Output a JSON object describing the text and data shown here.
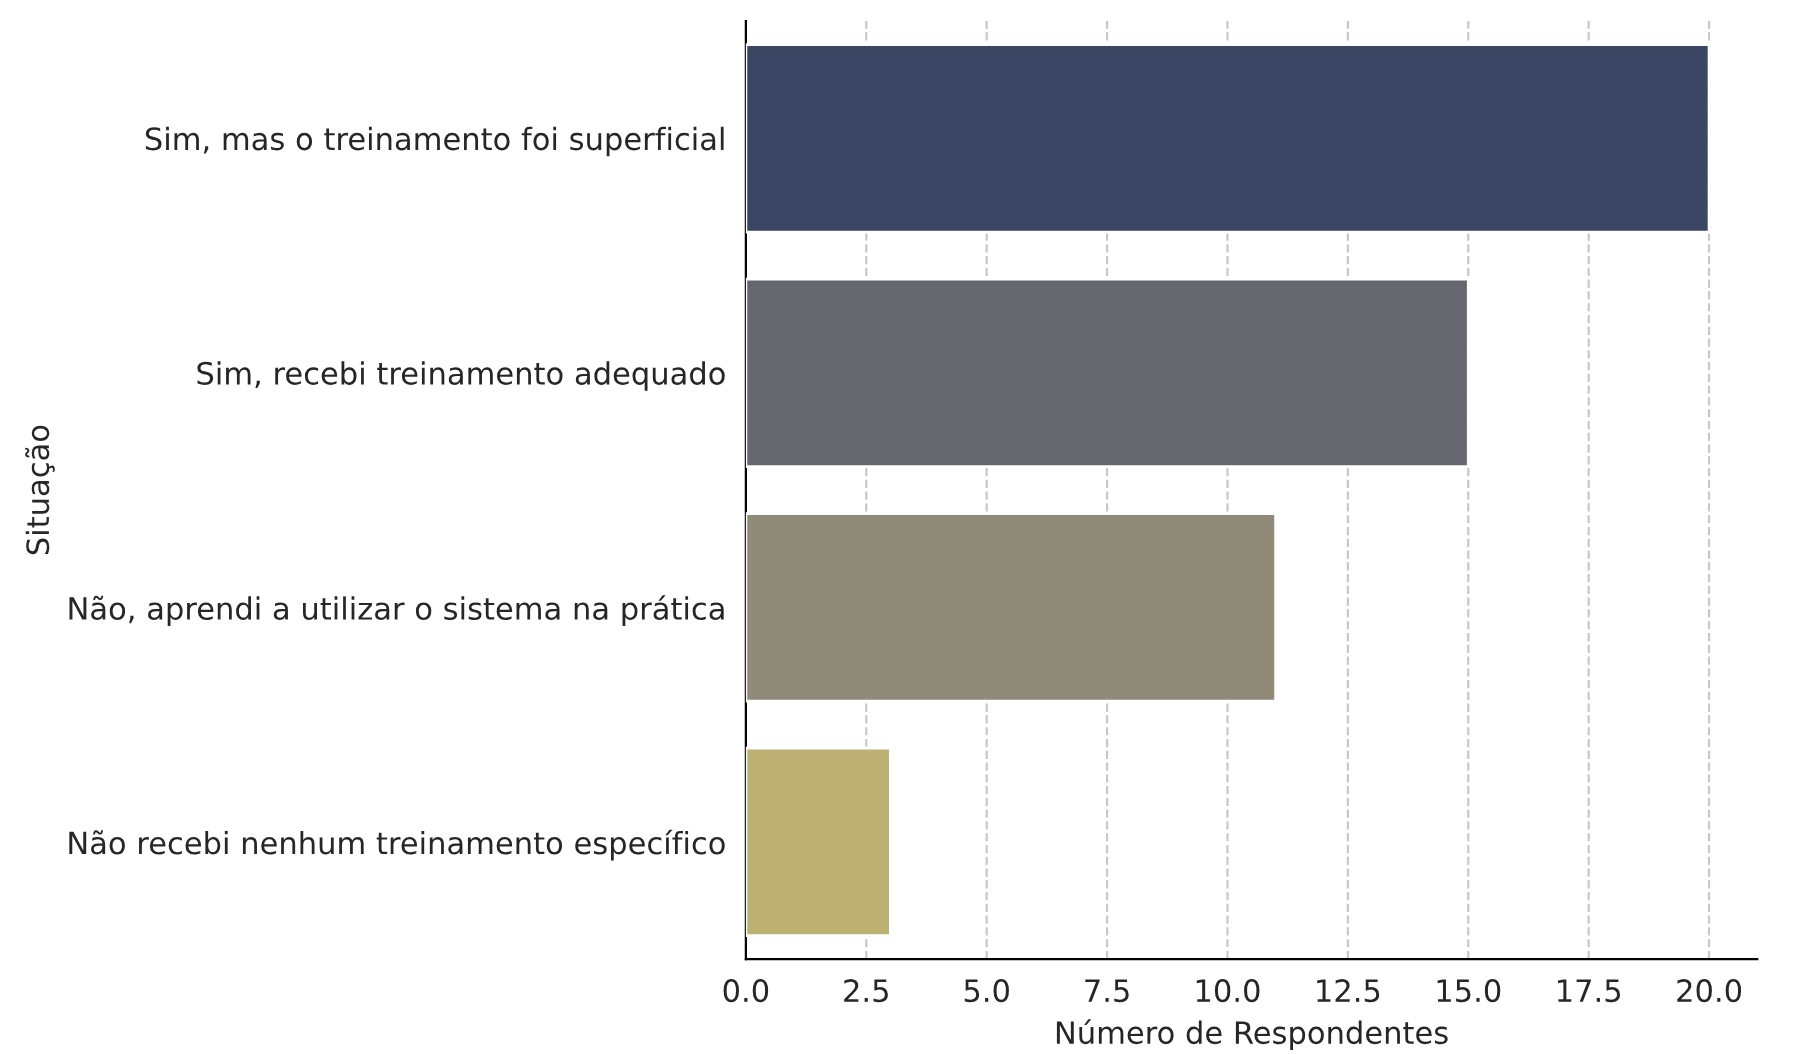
{
  "chart_data": {
    "type": "bar",
    "orientation": "horizontal",
    "xlabel": "Número de Respondentes",
    "ylabel": "Situação",
    "categories": [
      "Sim, mas o treinamento foi superficial",
      "Sim, recebi treinamento adequado",
      "Não, aprendi a utilizar o sistema na prática",
      "Não recebi nenhum treinamento específico"
    ],
    "values": [
      20,
      15,
      11,
      3
    ],
    "colors": [
      "#3b4664",
      "#65666e",
      "#908a78",
      "#bcb173"
    ],
    "xlim": [
      0,
      21
    ],
    "xticks": [
      {
        "value": 0,
        "label": "0.0"
      },
      {
        "value": 2.5,
        "label": "2.5"
      },
      {
        "value": 5,
        "label": "5.0"
      },
      {
        "value": 7.5,
        "label": "7.5"
      },
      {
        "value": 10,
        "label": "10.0"
      },
      {
        "value": 12.5,
        "label": "12.5"
      },
      {
        "value": 15,
        "label": "15.0"
      },
      {
        "value": 17.5,
        "label": "17.5"
      },
      {
        "value": 20,
        "label": "20.0"
      }
    ],
    "grid": "x",
    "line_style": "dashed"
  }
}
